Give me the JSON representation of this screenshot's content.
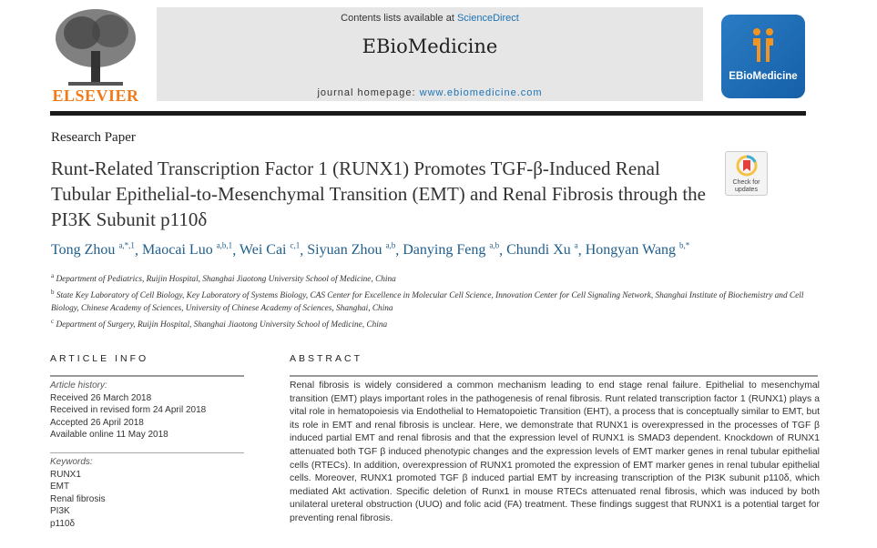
{
  "header": {
    "contents_prefix": "Contents lists available at ",
    "contents_link": "ScienceDirect",
    "journal_name": "EBioMedicine",
    "homepage_prefix": "journal homepage: ",
    "homepage_url": "www.ebiomedicine.com",
    "publisher_logo": "ELSEVIER",
    "journal_logo": "EBioMedicine"
  },
  "article_type": "Research Paper",
  "title": "Runt-Related Transcription Factor 1 (RUNX1) Promotes TGF-β-Induced Renal Tubular Epithelial-to-Mesenchymal Transition (EMT) and Renal Fibrosis through the PI3K Subunit p110δ",
  "check_updates": "Check for updates",
  "authors": [
    {
      "name": "Tong Zhou",
      "sup": "a,*,1"
    },
    {
      "name": "Maocai Luo",
      "sup": "a,b,1"
    },
    {
      "name": "Wei Cai",
      "sup": "c,1"
    },
    {
      "name": "Siyuan Zhou",
      "sup": "a,b"
    },
    {
      "name": "Danying Feng",
      "sup": "a,b"
    },
    {
      "name": "Chundi Xu",
      "sup": "a"
    },
    {
      "name": "Hongyan Wang",
      "sup": "b,*"
    }
  ],
  "affiliations": [
    {
      "label": "a",
      "text": "Department of Pediatrics, Ruijin Hospital, Shanghai Jiaotong University School of Medicine, China"
    },
    {
      "label": "b",
      "text": "State Key Laboratory of Cell Biology, Key Laboratory of Systems Biology, CAS Center for Excellence in Molecular Cell Science, Innovation Center for Cell Signaling Network, Shanghai Institute of Biochemistry and Cell Biology, Chinese Academy of Sciences, University of Chinese Academy of Sciences, Shanghai, China"
    },
    {
      "label": "c",
      "text": "Department of Surgery, Ruijin Hospital, Shanghai Jiaotong University School of Medicine, China"
    }
  ],
  "article_info": {
    "heading": "ARTICLE INFO",
    "history_label": "Article history:",
    "history": [
      "Received 26 March 2018",
      "Received in revised form 24 April 2018",
      "Accepted 26 April 2018",
      "Available online 11 May 2018"
    ],
    "keywords_label": "Keywords:",
    "keywords": [
      "RUNX1",
      "EMT",
      "Renal fibrosis",
      "PI3K",
      "p110δ"
    ]
  },
  "abstract": {
    "heading": "ABSTRACT",
    "text": "Renal fibrosis is widely considered a common mechanism leading to end stage renal failure. Epithelial to mesenchymal transition (EMT) plays important roles in the pathogenesis of renal fibrosis. Runt related transcription factor 1 (RUNX1) plays a vital role in hematopoiesis via Endothelial to Hematopoietic Transition (EHT), a process that is conceptually similar to EMT, but its role in EMT and renal fibrosis is unclear. Here, we demonstrate that RUNX1 is overexpressed in the processes of TGF β induced partial EMT and renal fibrosis and that the expression level of RUNX1 is SMAD3 dependent. Knockdown of RUNX1 attenuated both TGF β induced phenotypic changes and the expression levels of EMT marker genes in renal tubular epithelial cells (RTECs). In addition, overexpression of RUNX1 promoted the expression of EMT marker genes in renal tubular epithelial cells. Moreover, RUNX1 promoted TGF β induced partial EMT by increasing transcription of the PI3K subunit p110δ, which mediated Akt activation. Specific deletion of Runx1 in mouse RTECs attenuated renal fibrosis, which was induced by both unilateral ureteral obstruction (UUO) and folic acid (FA) treatment. These findings suggest that RUNX1 is a potential target for preventing renal fibrosis."
  }
}
